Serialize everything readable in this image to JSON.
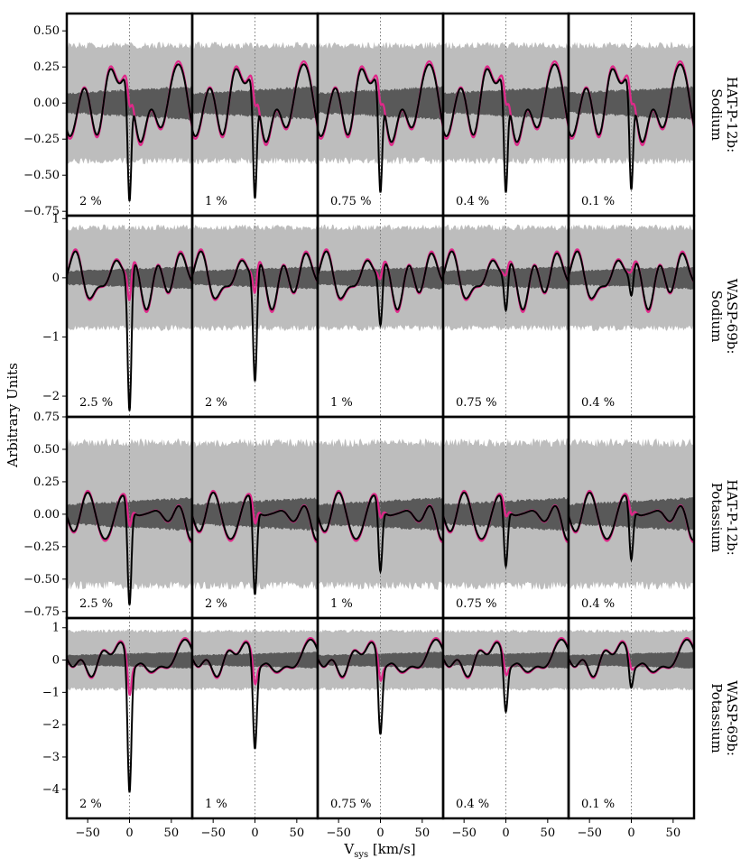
{
  "chart_data": {
    "type": "line",
    "ylabel": "Arbitrary Units",
    "xlabel": "V",
    "xlabel_sub": "sys",
    "xlabel_unit": " [km/s]",
    "xlim": [
      -75,
      75
    ],
    "xticks": [
      -50,
      0,
      50
    ],
    "xtick_labels": [
      "−50",
      "0",
      "50"
    ],
    "vline_x": 0,
    "colors": {
      "outer_band": "#bdbdbd",
      "inner_band": "#595959",
      "injected_line": "#e0288a",
      "recovered_line": "#000000",
      "vline": "#777777"
    },
    "rows": [
      {
        "label_line1": "HAT-P-12b:",
        "label_line2": "Sodium",
        "ylim": [
          -0.78,
          0.62
        ],
        "yticks": [
          0.5,
          0.25,
          0,
          -0.25,
          -0.5,
          -0.75
        ],
        "ytick_labels": [
          "0.50",
          "0.25",
          "0.00",
          "−0.25",
          "−0.50",
          "−0.75"
        ],
        "outer_band": 0.4,
        "outer_bump": 0.5,
        "inner_band": 0.09,
        "noise": 0.16,
        "seed": 3,
        "columns": [
          {
            "label": "2 %",
            "dip": -0.68
          },
          {
            "label": "1 %",
            "dip": -0.66
          },
          {
            "label": "0.75 %",
            "dip": -0.62
          },
          {
            "label": "0.4 %",
            "dip": -0.62
          },
          {
            "label": "0.1 %",
            "dip": -0.6
          }
        ]
      },
      {
        "label_line1": "WASP-69b:",
        "label_line2": "Sodium",
        "ylim": [
          -2.35,
          1.05
        ],
        "yticks": [
          1,
          0,
          -1,
          -2
        ],
        "ytick_labels": [
          "1",
          "0",
          "−1",
          "−2"
        ],
        "outer_band": 0.85,
        "outer_bump": 0.85,
        "inner_band": 0.15,
        "noise": 0.28,
        "seed": 11,
        "columns": [
          {
            "label": "2.5 %",
            "dip": -2.25
          },
          {
            "label": "2 %",
            "dip": -1.75
          },
          {
            "label": "1 %",
            "dip": -0.8
          },
          {
            "label": "0.75 %",
            "dip": -0.55
          },
          {
            "label": "0.4 %",
            "dip": -0.3
          }
        ]
      },
      {
        "label_line1": "HAT-P-12b:",
        "label_line2": "Potassium",
        "ylim": [
          -0.8,
          0.75
        ],
        "yticks": [
          0.75,
          0.5,
          0.25,
          0,
          -0.25,
          -0.5,
          -0.75
        ],
        "ytick_labels": [
          "0.75",
          "0.50",
          "0.25",
          "0.00",
          "−0.25",
          "−0.50",
          "−0.75"
        ],
        "outer_band": 0.55,
        "outer_bump": 0.55,
        "inner_band": 0.1,
        "noise": 0.14,
        "seed": 23,
        "columns": [
          {
            "label": "2.5 %",
            "dip": -0.7
          },
          {
            "label": "2 %",
            "dip": -0.62
          },
          {
            "label": "1 %",
            "dip": -0.44
          },
          {
            "label": "0.75 %",
            "dip": -0.4
          },
          {
            "label": "0.4 %",
            "dip": -0.35
          }
        ]
      },
      {
        "label_line1": "WASP-69b:",
        "label_line2": "Potassium",
        "ylim": [
          -4.9,
          1.3
        ],
        "yticks": [
          1,
          0,
          -1,
          -2,
          -3,
          -4
        ],
        "ytick_labels": [
          "1",
          "0",
          "−1",
          "−2",
          "−3",
          "−4"
        ],
        "outer_band": 0.9,
        "outer_bump": 0.9,
        "inner_band": 0.2,
        "noise": 0.32,
        "seed": 41,
        "columns": [
          {
            "label": "2 %",
            "dip": -4.1
          },
          {
            "label": "1 %",
            "dip": -2.75
          },
          {
            "label": "0.75 %",
            "dip": -2.3
          },
          {
            "label": "0.4 %",
            "dip": -1.6
          },
          {
            "label": "0.1 %",
            "dip": -0.85
          }
        ]
      }
    ]
  }
}
